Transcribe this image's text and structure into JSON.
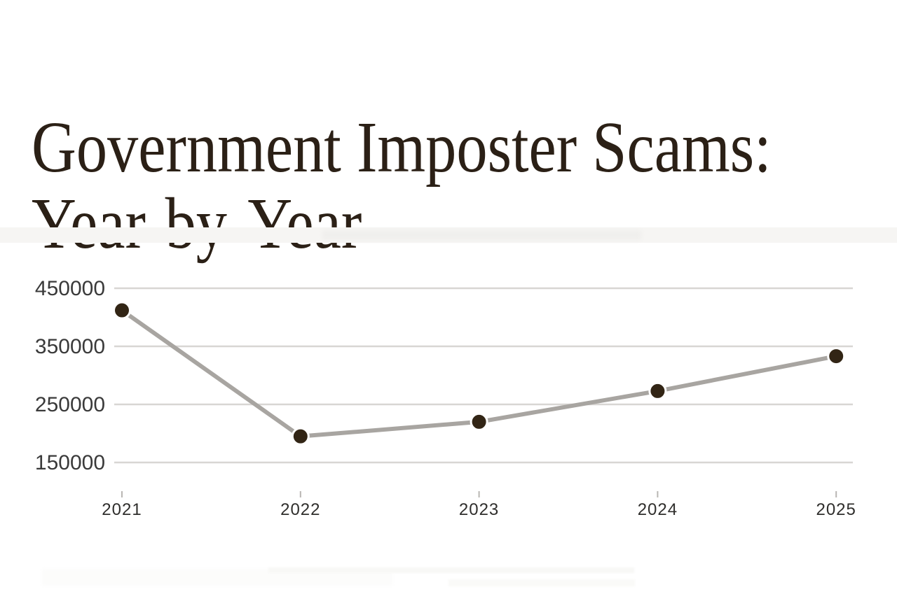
{
  "title": {
    "line1": "Government Imposter Scams:",
    "line2": "Year-by-Year",
    "color": "#2b2016"
  },
  "chart_data": {
    "type": "line",
    "title": "Government Imposter Scams: Year-by-Year",
    "x": [
      "2021",
      "2022",
      "2023",
      "2024",
      "2025"
    ],
    "values": [
      412000,
      195000,
      220000,
      273000,
      333000
    ],
    "y_ticks": [
      450000,
      350000,
      250000,
      150000
    ],
    "ylim": [
      150000,
      450000
    ],
    "xlabel": "",
    "ylabel": "",
    "grid": "horizontal-only",
    "legend": "none",
    "colors": {
      "line": "#a8a5a1",
      "point": "#322515",
      "point_ring": "#ffffff",
      "gridline": "#d8d6d3",
      "tick": "#b9b6b3",
      "y_label": "#3a3a3a",
      "x_label": "#2f2e2c",
      "title": "#2b2016",
      "background": "#ffffff"
    }
  }
}
